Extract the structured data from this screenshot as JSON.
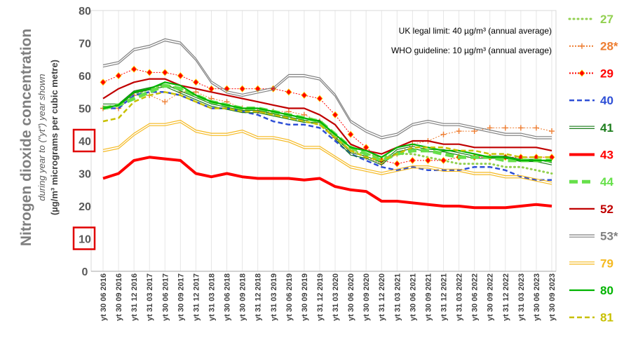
{
  "chart_data": {
    "type": "line",
    "ylabel": "Nitrogen dioxide concentration",
    "ylabel_sub": "during year to (\"yt\") year shown",
    "ylabel_unit": "(µg/m³ micrograms per cubic metre)",
    "ylim": [
      0,
      80
    ],
    "yticks": [
      0,
      10,
      20,
      30,
      40,
      50,
      60,
      70,
      80
    ],
    "highlighted_yticks": [
      10,
      40
    ],
    "grid": "vertical",
    "legend_position": "right",
    "annotations": [
      "UK legal limit:  40 µg/m³ (annual average)",
      "WHO guideline:  10 µg/m³ (annual average)"
    ],
    "x": [
      "yt 30 06 2016",
      "yt 30 09 2016",
      "yt 31 12 2016",
      "yt 31 03 2017",
      "yt 30 06 2017",
      "yt 30 09 2017",
      "yt 31 12 2017",
      "yt 31 03 2018",
      "yt 30 06 2018",
      "yt 30 09 2018",
      "yt 31 12 2018",
      "yt 31 03 2019",
      "yt 30 06 2019",
      "yt 30 09 2019",
      "yt 31 12 2019",
      "yt 31 03 2020",
      "yt 30 06 2020",
      "yt 30 09 2020",
      "yt 31 12 2020",
      "yt 31 03 2021",
      "yt 30 06 2021",
      "yt 30 09 2021",
      "yt 31 12 2021",
      "yt 31 03 2022",
      "yt 30 06 2022",
      "yt 30 09 2022",
      "yt 31 12 2022",
      "yt 31 03 2023",
      "yt 30 06 2023",
      "yt 30 09 2023"
    ],
    "series": [
      {
        "name": "27",
        "color": "#92d050",
        "style": "dotted",
        "values": [
          50,
          51,
          54,
          56,
          57,
          56,
          54,
          52,
          51,
          50,
          49,
          48,
          47,
          46,
          45,
          41,
          37,
          36,
          35,
          36,
          36,
          35,
          34,
          33,
          33,
          33,
          32,
          32,
          31,
          30
        ]
      },
      {
        "name": "28*",
        "color": "#ed7d31",
        "style": "plus",
        "values": [
          50,
          50,
          54,
          54,
          52,
          55,
          55,
          53,
          52,
          50,
          49,
          49,
          49,
          48,
          46,
          41,
          37,
          35,
          33,
          36,
          39,
          40,
          42,
          43,
          43,
          44,
          44,
          44,
          44,
          43
        ]
      },
      {
        "name": "29",
        "color": "#ff0000",
        "style": "diamond",
        "values": [
          58,
          60,
          62,
          61,
          61,
          60,
          58,
          56,
          56,
          56,
          56,
          56,
          55,
          54,
          53,
          48,
          42,
          38,
          34,
          33,
          34,
          34,
          34,
          35,
          35,
          35,
          35,
          35,
          35,
          35
        ]
      },
      {
        "name": "40",
        "color": "#2e4fd6",
        "style": "dashed",
        "values": [
          50,
          50,
          54,
          55,
          55,
          54,
          52,
          50,
          50,
          49,
          48,
          46,
          45,
          45,
          44,
          40,
          36,
          34,
          32,
          31,
          32,
          31,
          31,
          31,
          32,
          32,
          31,
          29,
          28,
          28
        ]
      },
      {
        "name": "41",
        "color": "#1e7e1e",
        "style": "double",
        "values": [
          51,
          51,
          55,
          56,
          57,
          55,
          53,
          51,
          50,
          49,
          49,
          48,
          47,
          46,
          46,
          41,
          36,
          35,
          33,
          37,
          38,
          37,
          37,
          36,
          35,
          35,
          35,
          34,
          34,
          33
        ]
      },
      {
        "name": "43",
        "color": "#ff0000",
        "style": "thick",
        "values": [
          28.5,
          30,
          34,
          35,
          34.5,
          34,
          30,
          29,
          30,
          29,
          28.5,
          28.5,
          28.5,
          28,
          28.5,
          26,
          25,
          24.5,
          21.5,
          21.5,
          21,
          20.5,
          20,
          20,
          19.5,
          19.5,
          19.5,
          20,
          20.5,
          20
        ]
      },
      {
        "name": "44",
        "color": "#66e04a",
        "style": "thickdash",
        "values": [
          50,
          51,
          53,
          55,
          57,
          56,
          54,
          52,
          51,
          50,
          50,
          49,
          48,
          47,
          46,
          42,
          38,
          36,
          34,
          36,
          37,
          37,
          36,
          35,
          35,
          35,
          34,
          34,
          34,
          34
        ]
      },
      {
        "name": "52",
        "color": "#c00000",
        "style": "solid",
        "values": [
          53,
          56,
          58,
          59,
          59,
          57,
          56,
          55,
          54,
          53,
          52,
          51,
          50,
          50,
          48,
          45,
          39,
          37,
          36,
          38,
          40,
          40,
          39,
          39,
          38,
          38,
          38,
          38,
          38,
          37
        ]
      },
      {
        "name": "53*",
        "color": "#808080",
        "style": "double",
        "values": [
          63,
          64,
          68,
          69,
          71,
          70,
          65,
          58,
          55,
          54,
          55,
          56,
          60,
          60,
          59,
          54,
          46,
          43,
          41,
          42,
          45,
          46,
          45,
          45,
          44,
          43,
          42,
          42,
          41,
          41
        ]
      },
      {
        "name": "79",
        "color": "#f5b920",
        "style": "double",
        "values": [
          37,
          38,
          42,
          45,
          45,
          46,
          43,
          42,
          42,
          43,
          41,
          41,
          40,
          38,
          38,
          35,
          32,
          31,
          30,
          31,
          32,
          32,
          31,
          31,
          30,
          30,
          29,
          29,
          28,
          27
        ]
      },
      {
        "name": "80",
        "color": "#00b400",
        "style": "solid",
        "values": [
          50,
          51,
          55,
          56,
          58,
          57,
          54,
          52,
          51,
          50,
          50,
          49,
          48,
          47,
          46,
          42,
          38,
          37,
          35,
          38,
          39,
          38,
          37,
          37,
          36,
          35,
          35,
          34,
          34,
          34
        ]
      },
      {
        "name": "81",
        "color": "#c8c000",
        "style": "dashed",
        "values": [
          46,
          47,
          52,
          54,
          55,
          54,
          52,
          50,
          50,
          49,
          49,
          48,
          47,
          46,
          45,
          41,
          37,
          35,
          34,
          36,
          38,
          38,
          38,
          37,
          37,
          36,
          36,
          35,
          35,
          35
        ]
      }
    ]
  }
}
